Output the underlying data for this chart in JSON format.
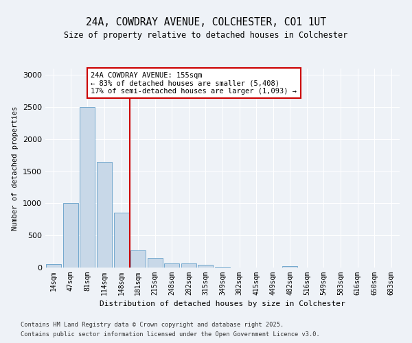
{
  "title": "24A, COWDRAY AVENUE, COLCHESTER, CO1 1UT",
  "subtitle": "Size of property relative to detached houses in Colchester",
  "xlabel": "Distribution of detached houses by size in Colchester",
  "ylabel": "Number of detached properties",
  "categories": [
    "14sqm",
    "47sqm",
    "81sqm",
    "114sqm",
    "148sqm",
    "181sqm",
    "215sqm",
    "248sqm",
    "282sqm",
    "315sqm",
    "349sqm",
    "382sqm",
    "415sqm",
    "449sqm",
    "482sqm",
    "516sqm",
    "549sqm",
    "583sqm",
    "616sqm",
    "650sqm",
    "683sqm"
  ],
  "values": [
    50,
    1000,
    2500,
    1650,
    850,
    270,
    150,
    65,
    60,
    45,
    10,
    5,
    3,
    0,
    20,
    0,
    0,
    0,
    0,
    0,
    0
  ],
  "bar_color": "#c8d8e8",
  "bar_edge_color": "#4a90c0",
  "red_line_x": 4.5,
  "annotation_line1": "24A COWDRAY AVENUE: 155sqm",
  "annotation_line2": "← 83% of detached houses are smaller (5,408)",
  "annotation_line3": "17% of semi-detached houses are larger (1,093) →",
  "annotation_box_color": "#ffffff",
  "annotation_box_edge_color": "#cc0000",
  "vline_color": "#cc0000",
  "ylim": [
    0,
    3100
  ],
  "yticks": [
    0,
    500,
    1000,
    1500,
    2000,
    2500,
    3000
  ],
  "footer_line1": "Contains HM Land Registry data © Crown copyright and database right 2025.",
  "footer_line2": "Contains public sector information licensed under the Open Government Licence v3.0.",
  "background_color": "#eef2f7",
  "plot_background": "#eef2f7"
}
